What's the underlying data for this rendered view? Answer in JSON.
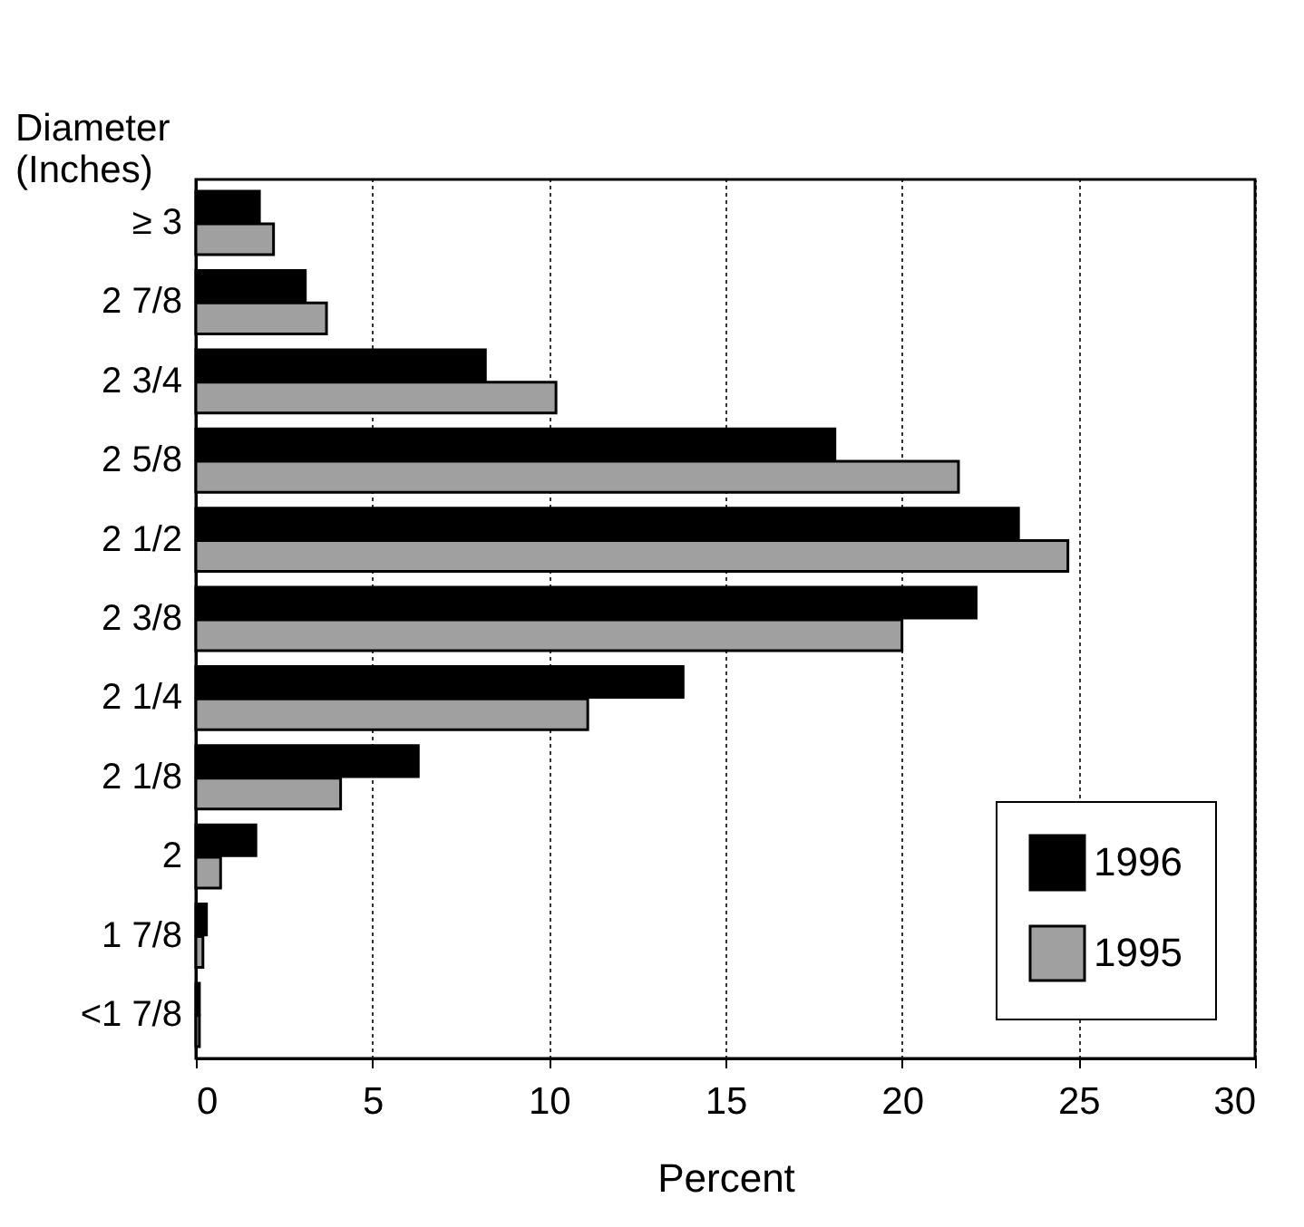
{
  "chart_data": {
    "type": "bar",
    "orientation": "horizontal",
    "xlabel": "Percent",
    "ylabel": "Diameter (Inches)",
    "categories": [
      "≥ 3",
      "2 7/8",
      "2 3/4",
      "2 5/8",
      "2 1/2",
      "2 3/8",
      "2 1/4",
      "2 1/8",
      "2",
      "1 7/8",
      "<1 7/8"
    ],
    "series": [
      {
        "name": "1996",
        "color": "#000000",
        "values": [
          1.8,
          3.1,
          8.2,
          18.1,
          23.3,
          22.1,
          13.8,
          6.3,
          1.7,
          0.3,
          0.1
        ]
      },
      {
        "name": "1995",
        "color": "#a0a0a0",
        "values": [
          2.2,
          3.7,
          10.2,
          21.6,
          24.7,
          20.0,
          11.1,
          4.1,
          0.7,
          0.2,
          0.1
        ]
      }
    ],
    "xlim": [
      0,
      30
    ],
    "xticks": [
      0,
      5,
      10,
      15,
      20,
      25,
      30
    ],
    "grid": "x",
    "legend": "bottom right"
  }
}
